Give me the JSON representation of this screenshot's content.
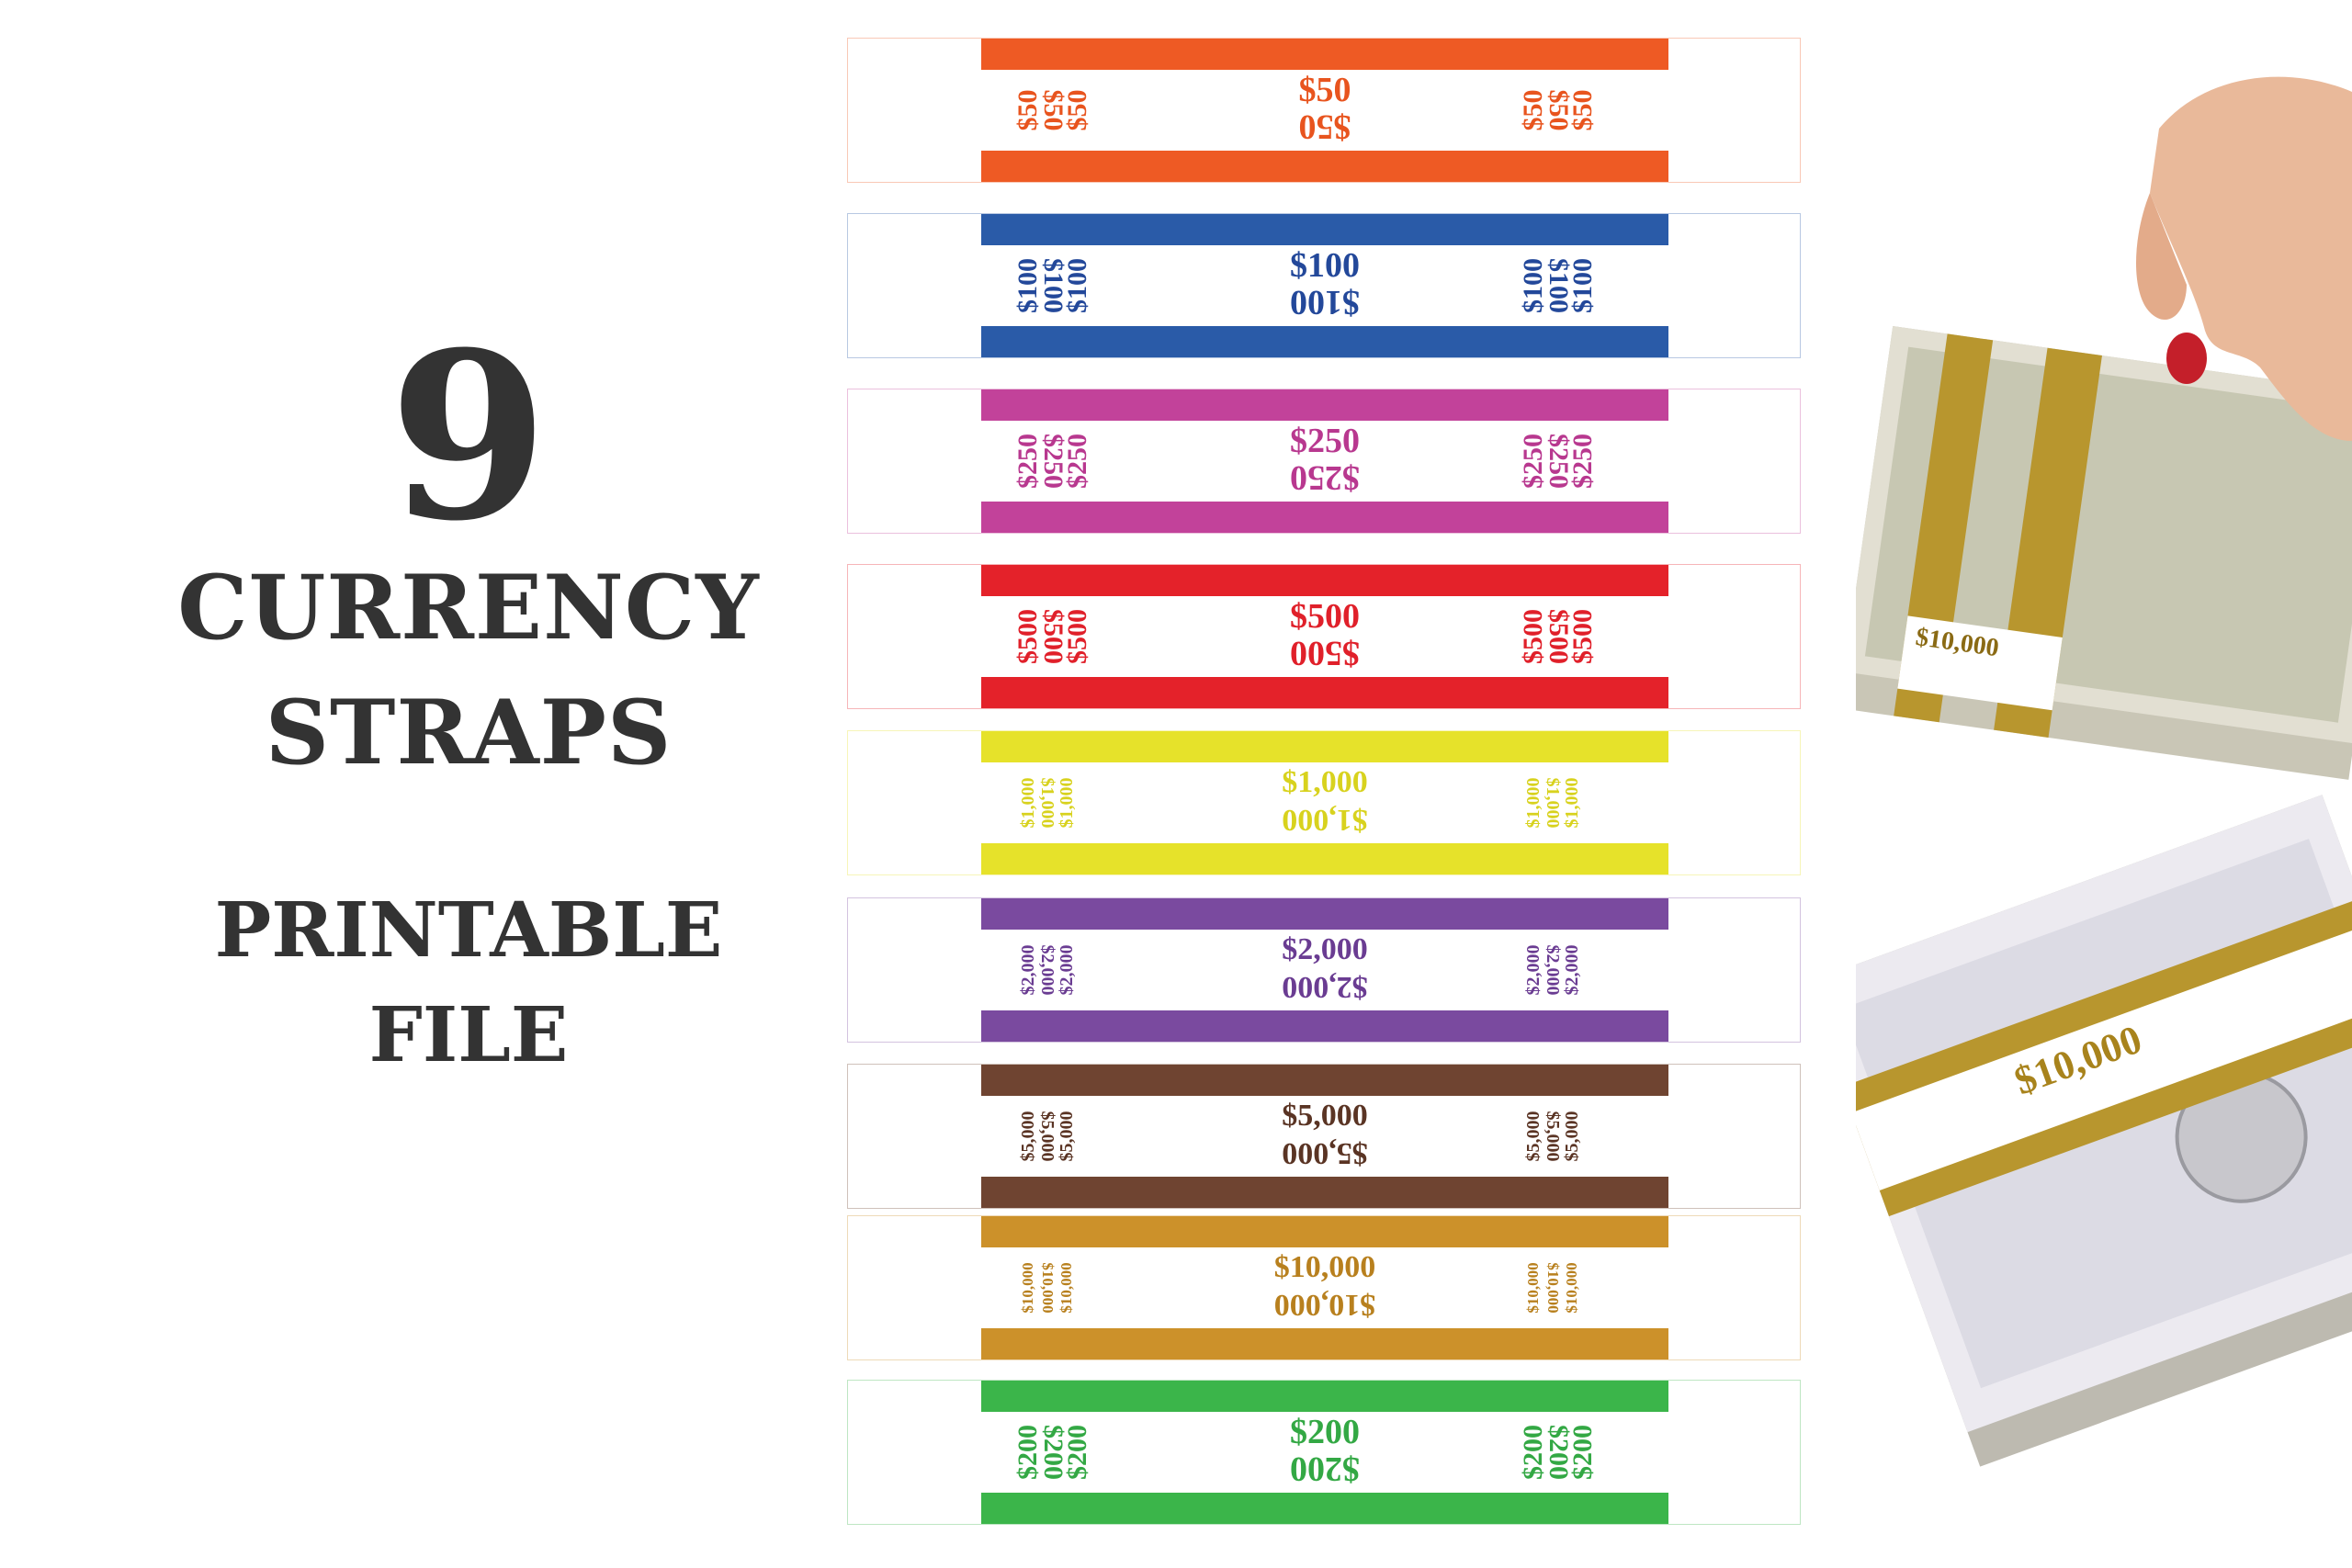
{
  "headline": {
    "number": "9",
    "line1": "CURRENCY",
    "line2": "STRAPS",
    "line3": "PRINTABLE",
    "line4": "FILE"
  },
  "straps": [
    {
      "label": "$50",
      "color": "#EE5A24",
      "text_color": "#E8541E"
    },
    {
      "label": "$100",
      "color": "#2A5BA8",
      "text_color": "#23489A"
    },
    {
      "label": "$250",
      "color": "#C2429A",
      "text_color": "#B8388F"
    },
    {
      "label": "$500",
      "color": "#E4222A",
      "text_color": "#E0202A"
    },
    {
      "label": "$1,000",
      "color": "#E6E22A",
      "text_color": "#D8D21E"
    },
    {
      "label": "$2,000",
      "color": "#7A4A9F",
      "text_color": "#6A3C92"
    },
    {
      "label": "$5,000",
      "color": "#6F4431",
      "text_color": "#5A3424"
    },
    {
      "label": "$10,000",
      "color": "#CC912A",
      "text_color": "#B8801E"
    },
    {
      "label": "$200",
      "color": "#3BB54A",
      "text_color": "#33A844"
    }
  ],
  "photo": {
    "band_label": "$10,000",
    "band_color": "#B8962E"
  }
}
